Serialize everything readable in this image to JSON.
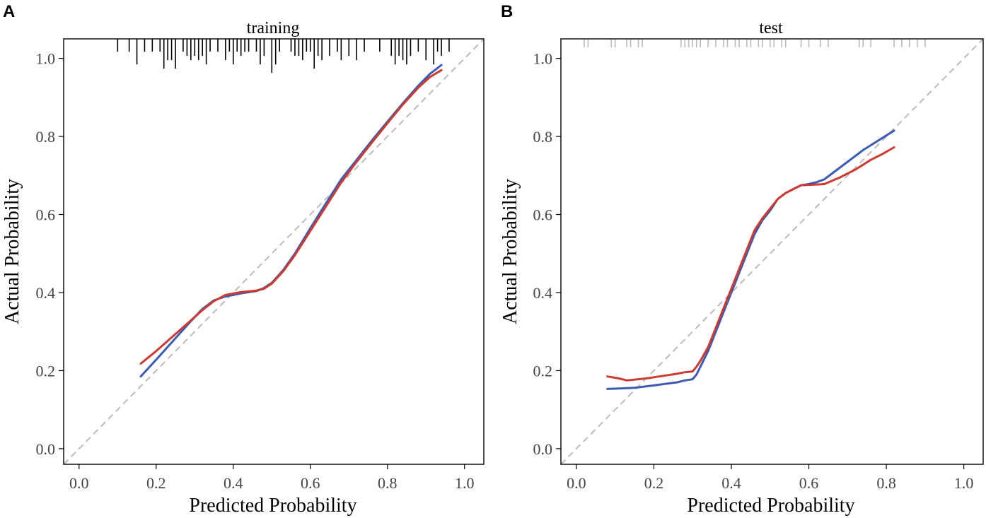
{
  "chart_data": [
    {
      "panel": "A",
      "type": "line",
      "title": "training",
      "xlabel": "Predicted Probability",
      "ylabel": "Actual Probability",
      "xlim": [
        -0.04,
        1.05
      ],
      "ylim": [
        -0.04,
        1.05
      ],
      "xticks": [
        "0.0",
        "0.2",
        "0.4",
        "0.6",
        "0.8",
        "1.0"
      ],
      "yticks": [
        "0.0",
        "0.2",
        "0.4",
        "0.6",
        "0.8",
        "1.0"
      ],
      "reference_line": {
        "style": "dashed",
        "color": "#bbbbbb",
        "from": [
          -0.04,
          -0.04
        ],
        "to": [
          1.05,
          1.05
        ]
      },
      "rug": {
        "color": "#000000",
        "ticks": [
          [
            0.1,
            0.03
          ],
          [
            0.13,
            0.03
          ],
          [
            0.15,
            0.06
          ],
          [
            0.17,
            0.03
          ],
          [
            0.19,
            0.03
          ],
          [
            0.21,
            0.03
          ],
          [
            0.22,
            0.07
          ],
          [
            0.23,
            0.05
          ],
          [
            0.24,
            0.05
          ],
          [
            0.25,
            0.07
          ],
          [
            0.27,
            0.03
          ],
          [
            0.28,
            0.04
          ],
          [
            0.29,
            0.05
          ],
          [
            0.3,
            0.04
          ],
          [
            0.31,
            0.05
          ],
          [
            0.32,
            0.04
          ],
          [
            0.33,
            0.06
          ],
          [
            0.34,
            0.03
          ],
          [
            0.36,
            0.03
          ],
          [
            0.38,
            0.05
          ],
          [
            0.39,
            0.03
          ],
          [
            0.4,
            0.06
          ],
          [
            0.41,
            0.03
          ],
          [
            0.42,
            0.04
          ],
          [
            0.43,
            0.03
          ],
          [
            0.44,
            0.03
          ],
          [
            0.46,
            0.03
          ],
          [
            0.47,
            0.06
          ],
          [
            0.48,
            0.04
          ],
          [
            0.5,
            0.08
          ],
          [
            0.51,
            0.06
          ],
          [
            0.52,
            0.03
          ],
          [
            0.55,
            0.03
          ],
          [
            0.56,
            0.04
          ],
          [
            0.57,
            0.04
          ],
          [
            0.58,
            0.05
          ],
          [
            0.59,
            0.03
          ],
          [
            0.6,
            0.03
          ],
          [
            0.61,
            0.07
          ],
          [
            0.62,
            0.04
          ],
          [
            0.63,
            0.05
          ],
          [
            0.65,
            0.04
          ],
          [
            0.67,
            0.03
          ],
          [
            0.68,
            0.05
          ],
          [
            0.7,
            0.04
          ],
          [
            0.72,
            0.05
          ],
          [
            0.74,
            0.03
          ],
          [
            0.78,
            0.03
          ],
          [
            0.81,
            0.04
          ],
          [
            0.82,
            0.06
          ],
          [
            0.83,
            0.04
          ],
          [
            0.84,
            0.05
          ],
          [
            0.85,
            0.06
          ],
          [
            0.86,
            0.04
          ],
          [
            0.88,
            0.03
          ],
          [
            0.9,
            0.05
          ],
          [
            0.92,
            0.06
          ],
          [
            0.93,
            0.03
          ],
          [
            0.94,
            0.04
          ],
          [
            0.96,
            0.03
          ]
        ]
      },
      "series": [
        {
          "name": "blue curve",
          "color": "#3b5bb5",
          "x": [
            0.16,
            0.2,
            0.24,
            0.28,
            0.32,
            0.35,
            0.38,
            0.42,
            0.46,
            0.48,
            0.5,
            0.53,
            0.56,
            0.6,
            0.64,
            0.68,
            0.72,
            0.76,
            0.8,
            0.84,
            0.88,
            0.91,
            0.94
          ],
          "y": [
            0.185,
            0.228,
            0.272,
            0.316,
            0.358,
            0.38,
            0.39,
            0.398,
            0.404,
            0.412,
            0.425,
            0.458,
            0.5,
            0.565,
            0.628,
            0.69,
            0.74,
            0.79,
            0.838,
            0.885,
            0.93,
            0.96,
            0.983
          ]
        },
        {
          "name": "red curve",
          "color": "#cc3a30",
          "x": [
            0.16,
            0.2,
            0.24,
            0.28,
            0.32,
            0.35,
            0.38,
            0.42,
            0.46,
            0.48,
            0.5,
            0.53,
            0.56,
            0.6,
            0.64,
            0.68,
            0.72,
            0.76,
            0.8,
            0.84,
            0.88,
            0.91,
            0.94
          ],
          "y": [
            0.218,
            0.25,
            0.285,
            0.32,
            0.355,
            0.378,
            0.394,
            0.401,
            0.405,
            0.41,
            0.423,
            0.455,
            0.496,
            0.558,
            0.62,
            0.682,
            0.735,
            0.785,
            0.834,
            0.882,
            0.925,
            0.952,
            0.97
          ]
        }
      ]
    },
    {
      "panel": "B",
      "type": "line",
      "title": "test",
      "xlabel": "Predicted Probability",
      "ylabel": "Actual Probability",
      "xlim": [
        -0.04,
        1.05
      ],
      "ylim": [
        -0.04,
        1.05
      ],
      "xticks": [
        "0.0",
        "0.2",
        "0.4",
        "0.6",
        "0.8",
        "1.0"
      ],
      "yticks": [
        "0.0",
        "0.2",
        "0.4",
        "0.6",
        "0.8",
        "1.0"
      ],
      "reference_line": {
        "style": "dashed",
        "color": "#bbbbbb",
        "from": [
          -0.04,
          -0.04
        ],
        "to": [
          1.05,
          1.05
        ]
      },
      "rug": {
        "color": "#bbbbbb",
        "ticks": [
          [
            0.02,
            0.02
          ],
          [
            0.03,
            0.02
          ],
          [
            0.09,
            0.02
          ],
          [
            0.1,
            0.02
          ],
          [
            0.13,
            0.02
          ],
          [
            0.14,
            0.02
          ],
          [
            0.16,
            0.02
          ],
          [
            0.17,
            0.02
          ],
          [
            0.27,
            0.02
          ],
          [
            0.28,
            0.02
          ],
          [
            0.29,
            0.02
          ],
          [
            0.3,
            0.02
          ],
          [
            0.31,
            0.02
          ],
          [
            0.32,
            0.02
          ],
          [
            0.34,
            0.02
          ],
          [
            0.36,
            0.02
          ],
          [
            0.38,
            0.02
          ],
          [
            0.39,
            0.02
          ],
          [
            0.41,
            0.02
          ],
          [
            0.42,
            0.02
          ],
          [
            0.44,
            0.02
          ],
          [
            0.45,
            0.02
          ],
          [
            0.47,
            0.02
          ],
          [
            0.48,
            0.02
          ],
          [
            0.5,
            0.02
          ],
          [
            0.51,
            0.02
          ],
          [
            0.53,
            0.02
          ],
          [
            0.54,
            0.02
          ],
          [
            0.58,
            0.02
          ],
          [
            0.6,
            0.02
          ],
          [
            0.63,
            0.02
          ],
          [
            0.65,
            0.02
          ],
          [
            0.73,
            0.02
          ],
          [
            0.74,
            0.02
          ],
          [
            0.76,
            0.02
          ],
          [
            0.82,
            0.02
          ],
          [
            0.84,
            0.02
          ],
          [
            0.86,
            0.02
          ],
          [
            0.88,
            0.02
          ],
          [
            0.9,
            0.02
          ]
        ]
      },
      "series": [
        {
          "name": "blue curve",
          "color": "#3b5bb5",
          "x": [
            0.08,
            0.15,
            0.2,
            0.26,
            0.28,
            0.3,
            0.31,
            0.32,
            0.34,
            0.36,
            0.38,
            0.4,
            0.42,
            0.44,
            0.46,
            0.48,
            0.5,
            0.52,
            0.54,
            0.56,
            0.58,
            0.6,
            0.62,
            0.64,
            0.66,
            0.7,
            0.74,
            0.78,
            0.82
          ],
          "y": [
            0.153,
            0.156,
            0.162,
            0.17,
            0.175,
            0.178,
            0.19,
            0.21,
            0.25,
            0.3,
            0.35,
            0.4,
            0.45,
            0.5,
            0.55,
            0.585,
            0.61,
            0.64,
            0.655,
            0.665,
            0.675,
            0.678,
            0.683,
            0.69,
            0.705,
            0.735,
            0.765,
            0.79,
            0.815
          ]
        },
        {
          "name": "red curve",
          "color": "#cc3a30",
          "x": [
            0.08,
            0.11,
            0.13,
            0.16,
            0.18,
            0.22,
            0.26,
            0.28,
            0.3,
            0.31,
            0.32,
            0.34,
            0.36,
            0.38,
            0.4,
            0.42,
            0.44,
            0.46,
            0.48,
            0.5,
            0.52,
            0.54,
            0.56,
            0.58,
            0.6,
            0.64,
            0.68,
            0.72,
            0.76,
            0.79,
            0.82
          ],
          "y": [
            0.185,
            0.18,
            0.175,
            0.178,
            0.18,
            0.186,
            0.192,
            0.196,
            0.198,
            0.21,
            0.225,
            0.26,
            0.31,
            0.36,
            0.41,
            0.46,
            0.51,
            0.56,
            0.59,
            0.615,
            0.64,
            0.655,
            0.665,
            0.675,
            0.676,
            0.678,
            0.695,
            0.715,
            0.74,
            0.755,
            0.772
          ]
        }
      ]
    }
  ]
}
